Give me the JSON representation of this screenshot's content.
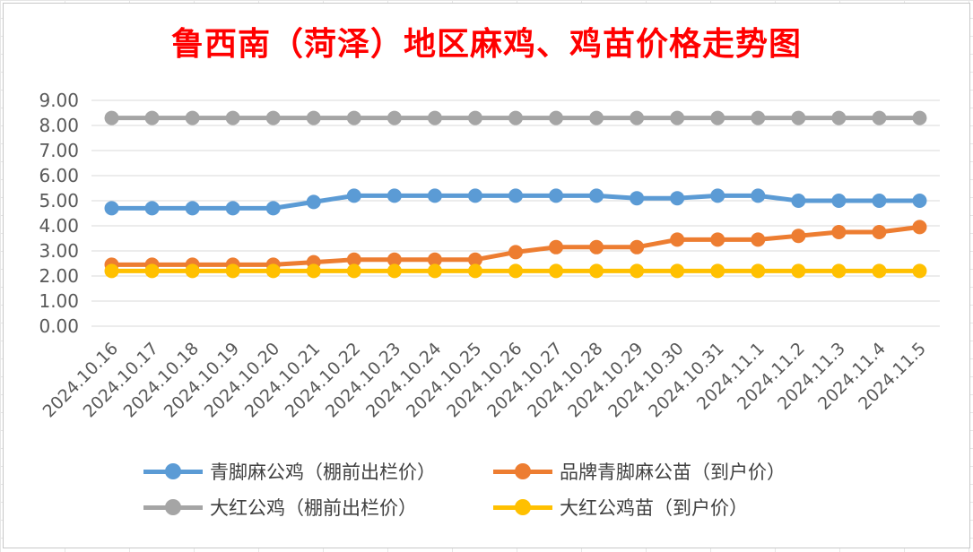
{
  "chart_data": {
    "type": "line",
    "title": "鲁西南（菏泽）地区麻鸡、鸡苗价格走势图",
    "categories": [
      "2024.10.16",
      "2024.10.17",
      "2024.10.18",
      "2024.10.19",
      "2024.10.20",
      "2024.10.21",
      "2024.10.22",
      "2024.10.23",
      "2024.10.24",
      "2024.10.25",
      "2024.10.26",
      "2024.10.27",
      "2024.10.28",
      "2024.10.29",
      "2024.10.30",
      "2024.10.31",
      "2024.11.1",
      "2024.11.2",
      "2024.11.3",
      "2024.11.4",
      "2024.11.5"
    ],
    "y_ticks": [
      "0.00",
      "1.00",
      "2.00",
      "3.00",
      "4.00",
      "5.00",
      "6.00",
      "7.00",
      "8.00",
      "9.00"
    ],
    "ylim": [
      0,
      9
    ],
    "grid": true,
    "legend_position": "bottom",
    "series": [
      {
        "name": "青脚麻公鸡（棚前出栏价）",
        "color": "#5b9bd5",
        "values": [
          4.7,
          4.7,
          4.7,
          4.7,
          4.7,
          4.95,
          5.2,
          5.2,
          5.2,
          5.2,
          5.2,
          5.2,
          5.2,
          5.1,
          5.1,
          5.2,
          5.2,
          5.0,
          5.0,
          5.0,
          5.0
        ]
      },
      {
        "name": "品牌青脚麻公苗（到户价）",
        "color": "#ed7d31",
        "values": [
          2.45,
          2.45,
          2.45,
          2.45,
          2.45,
          2.55,
          2.65,
          2.65,
          2.65,
          2.65,
          2.95,
          3.15,
          3.15,
          3.15,
          3.45,
          3.45,
          3.45,
          3.6,
          3.75,
          3.75,
          3.95
        ]
      },
      {
        "name": "大红公鸡（棚前出栏价）",
        "color": "#a5a5a5",
        "values": [
          8.3,
          8.3,
          8.3,
          8.3,
          8.3,
          8.3,
          8.3,
          8.3,
          8.3,
          8.3,
          8.3,
          8.3,
          8.3,
          8.3,
          8.3,
          8.3,
          8.3,
          8.3,
          8.3,
          8.3,
          8.3
        ]
      },
      {
        "name": "大红公鸡苗（到户价）",
        "color": "#ffc000",
        "values": [
          2.2,
          2.2,
          2.2,
          2.2,
          2.2,
          2.2,
          2.2,
          2.2,
          2.2,
          2.2,
          2.2,
          2.2,
          2.2,
          2.2,
          2.2,
          2.2,
          2.2,
          2.2,
          2.2,
          2.2,
          2.2
        ]
      }
    ]
  }
}
